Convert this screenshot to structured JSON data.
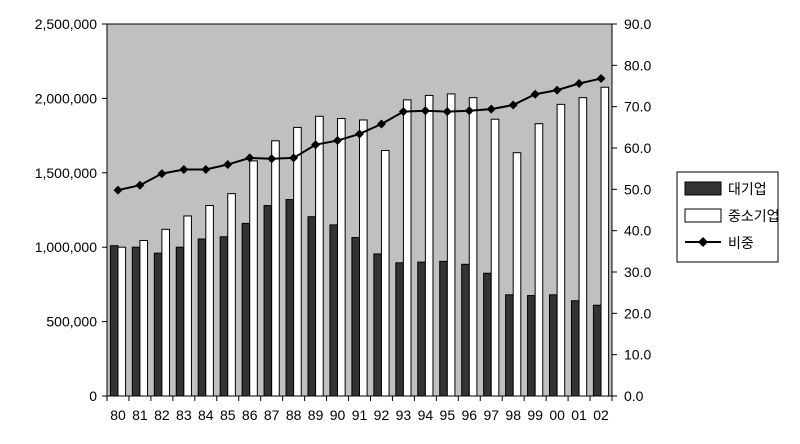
{
  "chart_data": {
    "type": "bar",
    "categories": [
      "80",
      "81",
      "82",
      "83",
      "84",
      "85",
      "86",
      "87",
      "88",
      "89",
      "90",
      "91",
      "92",
      "93",
      "94",
      "95",
      "96",
      "97",
      "98",
      "99",
      "00",
      "01",
      "02"
    ],
    "series": [
      {
        "name": "대기업",
        "kind": "bar",
        "axis": "left",
        "color": "#333333",
        "values": [
          1010000,
          1000000,
          960000,
          1000000,
          1055000,
          1070000,
          1160000,
          1280000,
          1320000,
          1205000,
          1150000,
          1065000,
          955000,
          895000,
          900000,
          905000,
          885000,
          825000,
          680000,
          675000,
          680000,
          640000,
          610000
        ]
      },
      {
        "name": "중소기업",
        "kind": "bar",
        "axis": "left",
        "color": "#ffffff",
        "values": [
          1000000,
          1045000,
          1120000,
          1210000,
          1280000,
          1360000,
          1580000,
          1715000,
          1805000,
          1880000,
          1865000,
          1855000,
          1650000,
          1990000,
          2020000,
          2030000,
          2005000,
          1860000,
          1635000,
          1830000,
          1960000,
          2005000,
          2075000
        ]
      },
      {
        "name": "비중",
        "kind": "line",
        "axis": "right",
        "color": "#000000",
        "values": [
          49.8,
          51.0,
          53.8,
          54.8,
          54.8,
          56.0,
          57.6,
          57.4,
          57.6,
          60.8,
          61.8,
          63.4,
          65.8,
          68.8,
          69.0,
          68.8,
          69.0,
          69.4,
          70.4,
          73.0,
          74.0,
          75.6,
          76.8
        ]
      }
    ],
    "ylim_left": [
      0,
      2500000
    ],
    "ylim_right": [
      0,
      90
    ],
    "yticks_left": [
      "0",
      "500,000",
      "1,000,000",
      "1,500,000",
      "2,000,000",
      "2,500,000"
    ],
    "yticks_right": [
      "0.0",
      "10.0",
      "20.0",
      "30.0",
      "40.0",
      "50.0",
      "60.0",
      "70.0",
      "80.0",
      "90.0"
    ],
    "plot_background": "#c0c0c0",
    "grid": false,
    "legend_position": "right",
    "title": "",
    "xlabel": "",
    "ylabel": ""
  }
}
